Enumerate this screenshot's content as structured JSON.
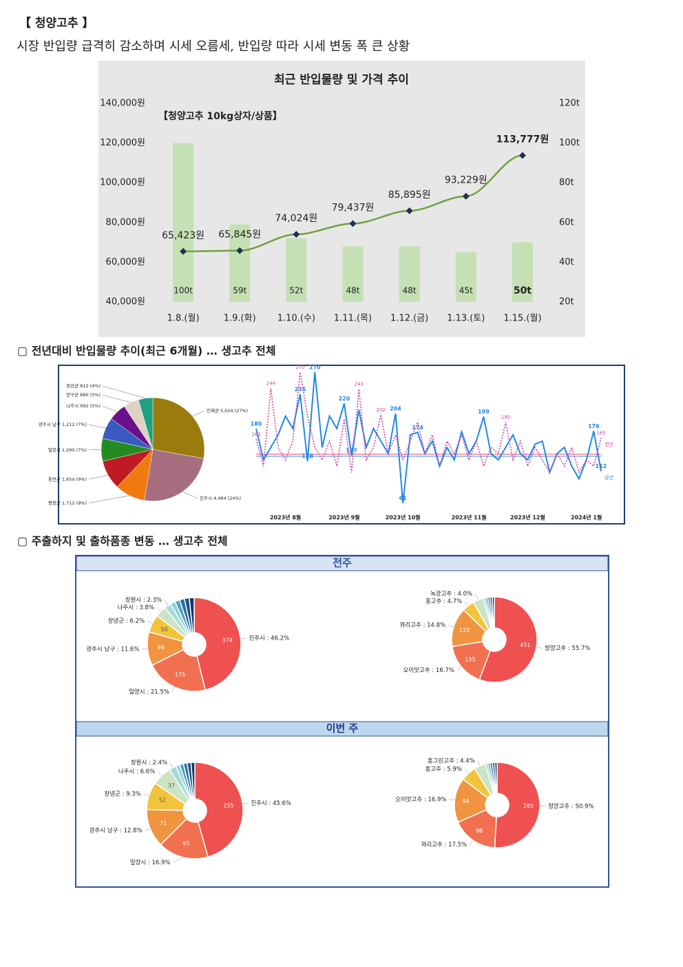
{
  "header": {
    "title": "【 청양고추 】",
    "subtitle": "시장 반입량 급격히 감소하며 시세 오름세, 반입량 따라 시세 변동 폭 큰 상황"
  },
  "sections": [
    "▢ 전년대비 반입물량 추이(최근 6개월) … 생고추 전체",
    "▢ 주출하지 및 출하품종 변동 … 생고추 전체"
  ],
  "panels": [
    "전주",
    "이번 주"
  ],
  "chart_data": [
    {
      "type": "combo",
      "title": "최근 반입물량 및 가격 추이",
      "annotation": "【청양고추 10kg상자/상품】",
      "categories": [
        "1.8.(월)",
        "1.9.(화)",
        "1.10.(수)",
        "1.11.(목)",
        "1.12.(금)",
        "1.13.(토)",
        "1.15.(월)"
      ],
      "ylim": [
        40000,
        140000
      ],
      "yticks": [
        {
          "value": 40000,
          "label": "40,000원"
        },
        {
          "value": 60000,
          "label": "60,000원"
        },
        {
          "value": 80000,
          "label": "80,000원"
        },
        {
          "value": 100000,
          "label": "100,000원"
        },
        {
          "value": 120000,
          "label": "120,000원"
        },
        {
          "value": 140000,
          "label": "140,000원"
        }
      ],
      "y2lim": [
        20,
        120
      ],
      "y2ticks": [
        {
          "value": 20,
          "label": "20t"
        },
        {
          "value": 40,
          "label": "40t"
        },
        {
          "value": 60,
          "label": "60t"
        },
        {
          "value": 80,
          "label": "80t"
        },
        {
          "value": 100,
          "label": "100t"
        },
        {
          "value": 120,
          "label": "120t"
        }
      ],
      "series": [
        {
          "type": "bar",
          "axis": "y2",
          "color": "#c5e0b4",
          "values": [
            100,
            59,
            52,
            48,
            48,
            45,
            50
          ],
          "value_labels": [
            "100t",
            "59t",
            "52t",
            "48t",
            "48t",
            "45t",
            "50t"
          ]
        },
        {
          "type": "line",
          "color": "#70a040",
          "values": [
            65423,
            65845,
            74024,
            79437,
            85895,
            93229,
            113777
          ],
          "value_labels": [
            "65,423원",
            "65,845원",
            "74,024원",
            "79,437원",
            "85,895원",
            "93,229원",
            "113,777원"
          ]
        }
      ]
    },
    {
      "type": "pie",
      "labels": [
        "인제군 5,024 (27%)",
        "진주시 4,484 (24%)",
        "평창군 1,712 (9%)",
        "홍천군 1,654 (9%)",
        "밀양시 1,290 (7%)",
        "광주시 남구 1,212 (7%)",
        "나주시 992 (5%)",
        "양구군 880 (5%)",
        "정선군 812 (4%)"
      ],
      "values": [
        5024,
        4484,
        1712,
        1654,
        1290,
        1212,
        992,
        880,
        812
      ],
      "colors": [
        "#9a7b0c",
        "#a66e7e",
        "#f07a10",
        "#c01a22",
        "#228b22",
        "#3a5ac0",
        "#6a108a",
        "#e0d2c2",
        "#20a080"
      ]
    },
    {
      "type": "line",
      "categories": [
        null,
        null,
        null,
        null,
        "2023년 8월",
        null,
        null,
        null,
        null,
        null,
        null,
        null,
        "2023년 9월",
        null,
        null,
        null,
        null,
        null,
        null,
        null,
        "2023년 10월",
        null,
        null,
        null,
        null,
        null,
        null,
        null,
        null,
        "2023년 11월",
        null,
        null,
        null,
        null,
        null,
        null,
        null,
        "2023년 12월",
        null,
        null,
        null,
        null,
        null,
        null,
        null,
        "2024년 1월",
        null,
        null
      ],
      "series": [
        {
          "name": "금년",
          "color": "#1e88e5",
          "values": [
            180,
            130,
            150,
            170,
            200,
            180,
            235,
            128,
            270,
            150,
            200,
            180,
            220,
            137,
            210,
            150,
            180,
            160,
            140,
            204,
            61,
            170,
            174,
            140,
            160,
            120,
            150,
            130,
            175,
            140,
            160,
            199,
            140,
            130,
            150,
            170,
            140,
            130,
            155,
            160,
            110,
            140,
            150,
            120,
            100,
            130,
            176,
            112
          ],
          "value_labels": [
            "180",
            null,
            null,
            null,
            null,
            null,
            "235",
            "128",
            "270",
            null,
            null,
            null,
            "220",
            "137",
            null,
            null,
            null,
            null,
            null,
            "204",
            "61",
            null,
            "174",
            null,
            null,
            null,
            null,
            null,
            null,
            null,
            null,
            "199",
            null,
            null,
            null,
            null,
            null,
            null,
            null,
            null,
            null,
            null,
            null,
            null,
            null,
            null,
            "176",
            "112"
          ]
        },
        {
          "name": "전년",
          "color": "#d63ca0",
          "values": [
            163,
            120,
            244,
            150,
            130,
            160,
            270,
            200,
            150,
            130,
            160,
            120,
            195,
            110,
            243,
            130,
            150,
            202,
            140,
            170,
            130,
            160,
            190,
            140,
            170,
            120,
            160,
            140,
            170,
            130,
            160,
            120,
            150,
            140,
            190,
            130,
            160,
            120,
            150,
            130,
            110,
            140,
            120,
            150,
            110,
            130,
            120,
            165
          ],
          "value_labels": [
            "163",
            null,
            "244",
            null,
            null,
            null,
            "270",
            null,
            null,
            null,
            null,
            null,
            null,
            null,
            "243",
            null,
            null,
            "202",
            null,
            null,
            null,
            null,
            null,
            null,
            null,
            null,
            null,
            null,
            null,
            null,
            null,
            null,
            null,
            null,
            "190",
            null,
            null,
            null,
            null,
            null,
            null,
            null,
            null,
            null,
            null,
            null,
            null,
            "165"
          ]
        }
      ]
    },
    {
      "type": "donut",
      "labels": [
        "진주시 : 46.2%",
        "밀양시 : 21.5%",
        "광주시 남구 : 11.6%",
        "창녕군 : 6.2%",
        "나주시 : 3.8%",
        "창원시 : 2.3%"
      ],
      "values": [
        46.2,
        21.5,
        11.6,
        6.2,
        3.8,
        2.3
      ],
      "counts": [
        374,
        175,
        94,
        50,
        null,
        null
      ]
    },
    {
      "type": "donut",
      "labels": [
        "청양고추 : 55.7%",
        "오이맛고추 : 16.7%",
        "꽈리고추 : 14.8%",
        "홍고추 : 4.7%",
        "녹광고추 : 4.0%"
      ],
      "values": [
        55.7,
        16.7,
        14.8,
        4.7,
        4.0
      ],
      "counts": [
        451,
        135,
        120,
        null,
        null
      ]
    },
    {
      "type": "donut",
      "labels": [
        "진주시 : 45.6%",
        "밀양시 : 16.9%",
        "광주시 남구 : 12.8%",
        "창녕군 : 9.3%",
        "나주시 : 6.6%",
        "창원시 : 2.4%"
      ],
      "values": [
        45.6,
        16.9,
        12.8,
        9.3,
        6.6,
        2.4
      ],
      "counts": [
        255,
        95,
        71,
        52,
        37,
        null
      ]
    },
    {
      "type": "donut",
      "labels": [
        "청양고추 : 50.9%",
        "꽈리고추 : 17.5%",
        "오이맛고추 : 16.9%",
        "홍고추 : 5.9%",
        "홍그린고추 : 4.4%"
      ],
      "values": [
        50.9,
        17.5,
        16.9,
        5.9,
        4.4
      ],
      "counts": [
        285,
        98,
        94,
        null,
        null
      ]
    }
  ]
}
